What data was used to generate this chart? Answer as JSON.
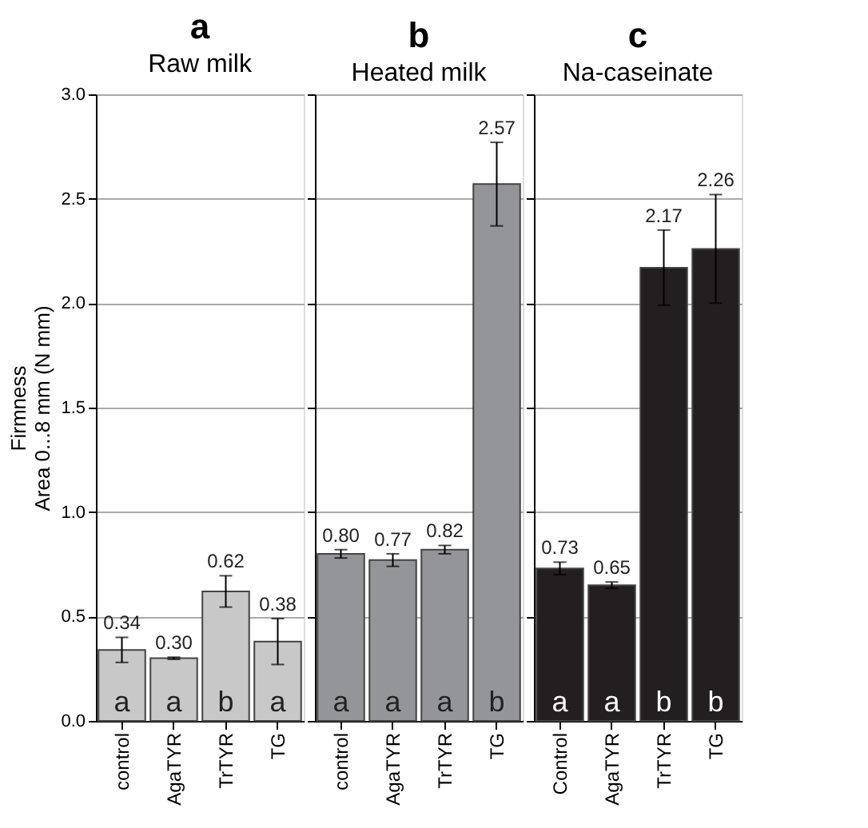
{
  "chart_data": [
    {
      "type": "bar",
      "title": "a",
      "subtitle": "Raw milk",
      "ylabel": "Firmness\nArea 0...8 mm (N mm)",
      "categories": [
        "control",
        "AgaTYR",
        "TrTYR",
        "TG"
      ],
      "values": [
        0.34,
        0.3,
        0.62,
        0.38
      ],
      "errors": [
        0.06,
        0.005,
        0.075,
        0.11
      ],
      "color": "#c8c8c8",
      "value_labels": [
        "0.34",
        "0.30",
        "0.62",
        "0.38"
      ],
      "ylim": [
        0,
        3
      ],
      "yticks": [
        {
          "value": 0,
          "label": "0.0"
        },
        {
          "value": 0.5,
          "label": "0.5"
        },
        {
          "value": 1,
          "label": "1.0"
        },
        {
          "value": 1.5,
          "label": "1.5"
        },
        {
          "value": 2,
          "label": "2.0"
        },
        {
          "value": 2.5,
          "label": "2.5"
        },
        {
          "value": 3,
          "label": "3.0"
        }
      ],
      "grid": "y",
      "annotations": [
        "a",
        "a",
        "b",
        "a"
      ]
    },
    {
      "type": "bar",
      "title": "b",
      "subtitle": "Heated milk",
      "categories": [
        "control",
        "AgaTYR",
        "TrTYR",
        "TG"
      ],
      "values": [
        0.8,
        0.77,
        0.82,
        2.57
      ],
      "errors": [
        0.02,
        0.03,
        0.02,
        0.2
      ],
      "color": "#939598",
      "value_labels": [
        "0.80",
        "0.77",
        "0.82",
        "2.57"
      ],
      "ylim": [
        0,
        3
      ],
      "yticks": [
        0,
        0.5,
        1,
        1.5,
        2,
        2.5,
        3
      ],
      "grid": "y",
      "tick_labels": "x",
      "annotations": [
        "a",
        "a",
        "a",
        "b"
      ]
    },
    {
      "type": "bar",
      "title": "c",
      "subtitle": "Na-caseinate",
      "categories": [
        "Control",
        "AgaTYR",
        "TrTYR",
        "TG"
      ],
      "values": [
        0.73,
        0.65,
        2.17,
        2.26
      ],
      "errors": [
        0.03,
        0.015,
        0.18,
        0.26
      ],
      "color": "#231f20",
      "value_labels": [
        "0.73",
        "0.65",
        "2.17",
        "2.26"
      ],
      "ylim": [
        0,
        3
      ],
      "yticks": [
        0,
        0.5,
        1,
        1.5,
        2,
        2.5,
        3
      ],
      "grid": "y",
      "tick_labels": "x",
      "annotations": [
        "a",
        "a",
        "b",
        "b"
      ]
    }
  ]
}
